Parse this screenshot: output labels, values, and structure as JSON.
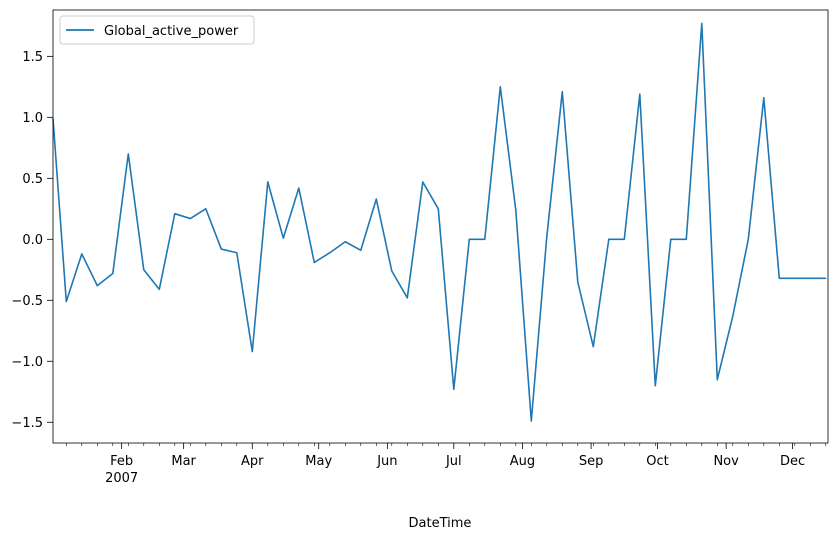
{
  "chart_data": {
    "type": "line",
    "title": "",
    "xlabel": "DateTime",
    "ylabel": "",
    "x_year_label": "2007",
    "grid": false,
    "legend": "top-left",
    "xlim": [
      "2007-01-01",
      "2007-12-17"
    ],
    "ylim": [
      -1.67,
      1.88
    ],
    "x_ticks": [
      {
        "date": "2007-02-01",
        "label": "Feb"
      },
      {
        "date": "2007-03-01",
        "label": "Mar"
      },
      {
        "date": "2007-04-01",
        "label": "Apr"
      },
      {
        "date": "2007-05-01",
        "label": "May"
      },
      {
        "date": "2007-06-01",
        "label": "Jun"
      },
      {
        "date": "2007-07-01",
        "label": "Jul"
      },
      {
        "date": "2007-08-01",
        "label": "Aug"
      },
      {
        "date": "2007-09-01",
        "label": "Sep"
      },
      {
        "date": "2007-10-01",
        "label": "Oct"
      },
      {
        "date": "2007-11-01",
        "label": "Nov"
      },
      {
        "date": "2007-12-01",
        "label": "Dec"
      }
    ],
    "y_ticks": [
      {
        "value": -1.5,
        "label": "−1.5"
      },
      {
        "value": -1.0,
        "label": "−1.0"
      },
      {
        "value": -0.5,
        "label": "−0.5"
      },
      {
        "value": 0.0,
        "label": "0.0"
      },
      {
        "value": 0.5,
        "label": "0.5"
      },
      {
        "value": 1.0,
        "label": "1.0"
      },
      {
        "value": 1.5,
        "label": "1.5"
      }
    ],
    "series": [
      {
        "name": "Global_active_power",
        "color": "#1f77b4",
        "x": [
          "2007-01-01",
          "2007-01-07",
          "2007-01-14",
          "2007-01-21",
          "2007-01-28",
          "2007-02-04",
          "2007-02-11",
          "2007-02-18",
          "2007-02-25",
          "2007-03-04",
          "2007-03-11",
          "2007-03-18",
          "2007-03-25",
          "2007-04-01",
          "2007-04-08",
          "2007-04-15",
          "2007-04-22",
          "2007-04-29",
          "2007-05-06",
          "2007-05-13",
          "2007-05-20",
          "2007-05-27",
          "2007-06-03",
          "2007-06-10",
          "2007-06-17",
          "2007-06-24",
          "2007-07-01",
          "2007-07-08",
          "2007-07-15",
          "2007-07-22",
          "2007-07-29",
          "2007-08-05",
          "2007-08-12",
          "2007-08-19",
          "2007-08-26",
          "2007-09-02",
          "2007-09-09",
          "2007-09-16",
          "2007-09-23",
          "2007-09-30",
          "2007-10-07",
          "2007-10-14",
          "2007-10-21",
          "2007-10-28",
          "2007-11-04",
          "2007-11-11",
          "2007-11-18",
          "2007-11-25",
          "2007-12-02",
          "2007-12-09",
          "2007-12-16"
        ],
        "values": [
          0.99,
          -0.51,
          -0.12,
          -0.38,
          -0.28,
          0.7,
          -0.25,
          -0.41,
          0.21,
          0.17,
          0.25,
          -0.08,
          -0.11,
          -0.92,
          0.47,
          0.01,
          0.42,
          -0.19,
          -0.11,
          -0.02,
          -0.09,
          0.33,
          -0.26,
          -0.48,
          0.47,
          0.25,
          -1.23,
          0.0,
          0.0,
          1.25,
          0.24,
          -1.49,
          0.02,
          1.21,
          -0.35,
          -0.88,
          0.0,
          0.0,
          1.19,
          -1.2,
          0.0,
          0.0,
          1.77,
          -1.15,
          -0.63,
          0.0,
          1.16,
          -0.32,
          -0.32,
          -0.32,
          -0.32
        ]
      }
    ]
  }
}
